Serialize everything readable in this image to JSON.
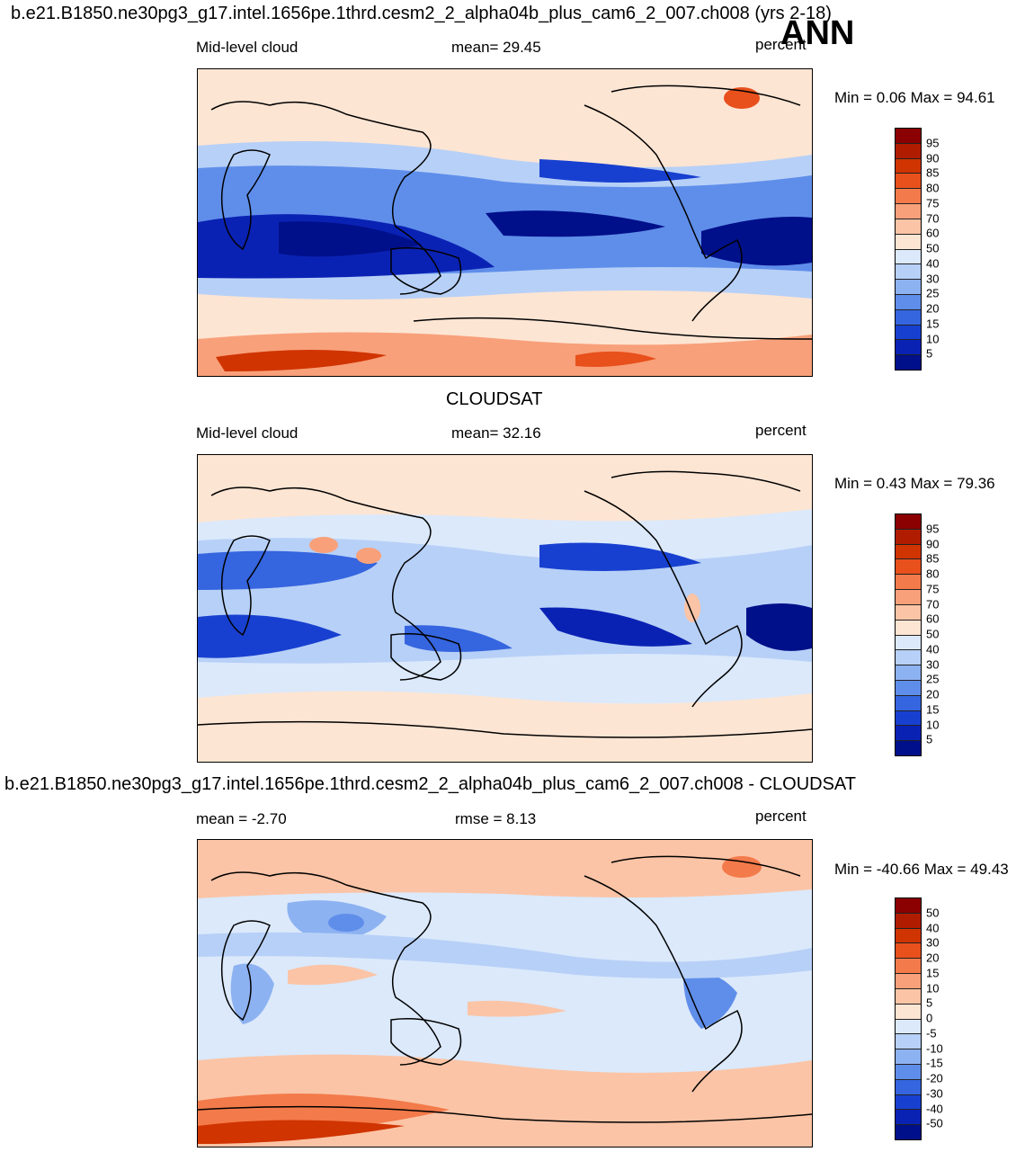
{
  "top_title": "b.e21.B1850.ne30pg3_g17.intel.1656pe.1thrd.cesm2_2_alpha04b_plus_cam6_2_007.ch008 (yrs 2-18)",
  "season": "ANN",
  "panels": [
    {
      "left_label": "Mid-level cloud",
      "center_label": "mean=  29.45",
      "units": "percent",
      "minmax": "Min =    0.06 Max =  94.61",
      "levels": [
        "95",
        "90",
        "85",
        "80",
        "75",
        "70",
        "60",
        "50",
        "40",
        "30",
        "25",
        "20",
        "15",
        "10",
        "5"
      ],
      "colors": [
        "#8b0000",
        "#b01c00",
        "#d03400",
        "#e8501c",
        "#f37a4a",
        "#f8a07a",
        "#fbc4a6",
        "#fde5d3",
        "#dbe9fb",
        "#b7d0f7",
        "#8db2f1",
        "#5f8eea",
        "#3565df",
        "#1840d0",
        "#0a22b4",
        "#00108a"
      ]
    },
    {
      "header": "CLOUDSAT",
      "left_label": "Mid-level cloud",
      "center_label": "mean=  32.16",
      "units": "percent",
      "minmax": "Min =    0.43 Max =  79.36",
      "levels": [
        "95",
        "90",
        "85",
        "80",
        "75",
        "70",
        "60",
        "50",
        "40",
        "30",
        "25",
        "20",
        "15",
        "10",
        "5"
      ],
      "colors": [
        "#8b0000",
        "#b01c00",
        "#d03400",
        "#e8501c",
        "#f37a4a",
        "#f8a07a",
        "#fbc4a6",
        "#fde5d3",
        "#dbe9fb",
        "#b7d0f7",
        "#8db2f1",
        "#5f8eea",
        "#3565df",
        "#1840d0",
        "#0a22b4",
        "#00108a"
      ]
    },
    {
      "header": "b.e21.B1850.ne30pg3_g17.intel.1656pe.1thrd.cesm2_2_alpha04b_plus_cam6_2_007.ch008 - CLOUDSAT",
      "left_label": "mean =  -2.70",
      "center_label": "rmse =    8.13",
      "units": "percent",
      "minmax": "Min = -40.66 Max =  49.43",
      "levels": [
        "50",
        "40",
        "30",
        "20",
        "15",
        "10",
        "5",
        "0",
        "-5",
        "-10",
        "-15",
        "-20",
        "-30",
        "-40",
        "-50"
      ],
      "colors": [
        "#8b0000",
        "#b01c00",
        "#d03400",
        "#e8501c",
        "#f37a4a",
        "#f8a07a",
        "#fbc4a6",
        "#fde5d3",
        "#dbe9fb",
        "#b7d0f7",
        "#8db2f1",
        "#5f8eea",
        "#3565df",
        "#1840d0",
        "#0a22b4",
        "#00108a"
      ]
    }
  ]
}
